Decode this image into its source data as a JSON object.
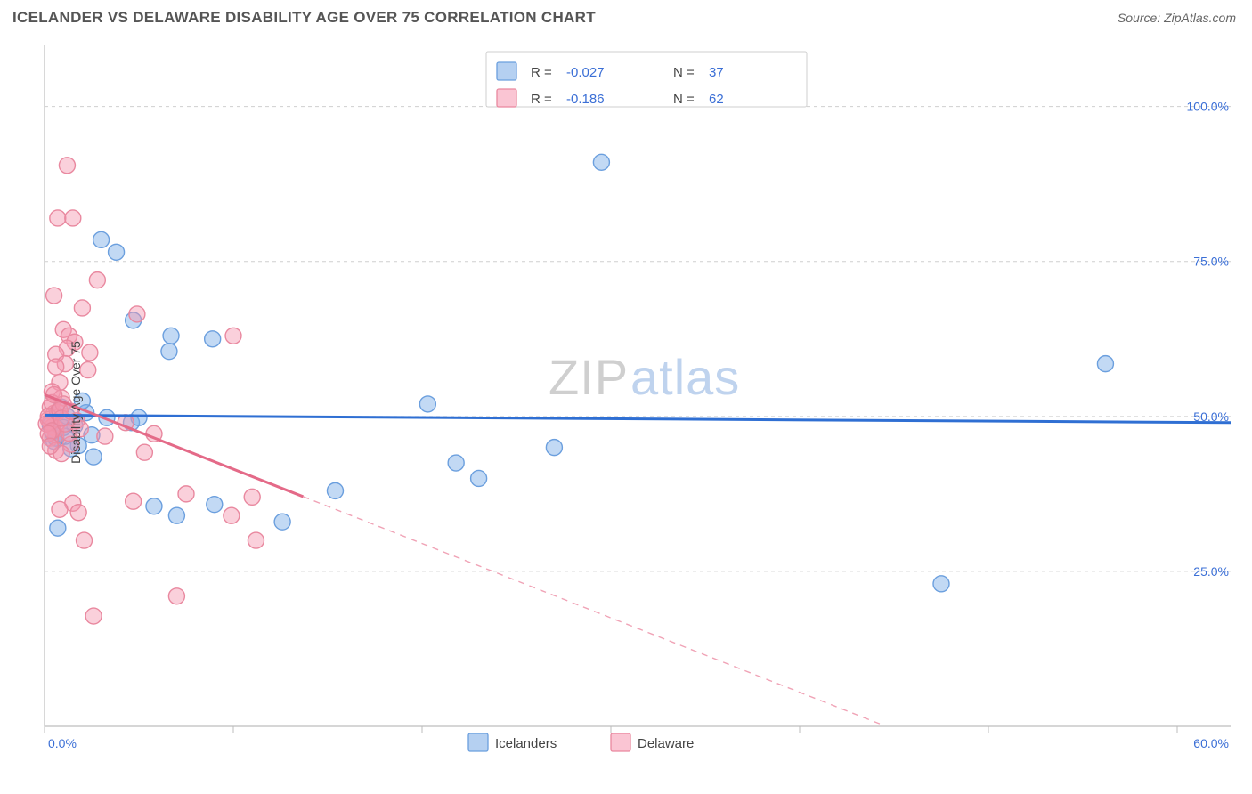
{
  "header": {
    "title": "ICELANDER VS DELAWARE DISABILITY AGE OVER 75 CORRELATION CHART",
    "source": "Source: ZipAtlas.com"
  },
  "chart": {
    "type": "scatter",
    "y_axis_title": "Disability Age Over 75",
    "background_color": "#ffffff",
    "grid_color": "#cfcfcf",
    "axis_color": "#bdbdbd",
    "axis_label_color": "#3b6fd6",
    "x": {
      "min": 0,
      "max": 60,
      "tick_step": 10,
      "min_label": "0.0%",
      "max_label": "60.0%"
    },
    "y": {
      "min": 0,
      "max": 110,
      "tick_step_grid": 25,
      "grid_labels": [
        "25.0%",
        "50.0%",
        "75.0%",
        "100.0%"
      ],
      "grid_positions": [
        25,
        50,
        75,
        100
      ]
    },
    "marker_radius": 9,
    "series": [
      {
        "name": "Icelanders",
        "color_fill": "rgba(120,170,230,0.45)",
        "color_stroke": "#6b9fde",
        "trend": {
          "color": "#2f6fd3",
          "width": 3,
          "y_at_x0": 50.2,
          "y_at_x60": 49.0
        },
        "points": [
          [
            0.5,
            46
          ],
          [
            0.7,
            32
          ],
          [
            2.5,
            47
          ],
          [
            1.2,
            50
          ],
          [
            1.6,
            48.5
          ],
          [
            3.0,
            78.5
          ],
          [
            3.8,
            76.5
          ],
          [
            4.6,
            49
          ],
          [
            4.7,
            65.5
          ],
          [
            5.8,
            35.5
          ],
          [
            6.6,
            60.5
          ],
          [
            6.7,
            63
          ],
          [
            7.0,
            34
          ],
          [
            8.9,
            62.5
          ],
          [
            9.0,
            35.8
          ],
          [
            12.6,
            33
          ],
          [
            15.4,
            38
          ],
          [
            20.3,
            52
          ],
          [
            21.8,
            42.5
          ],
          [
            23.0,
            40
          ],
          [
            27.0,
            45
          ],
          [
            29.5,
            91
          ],
          [
            47.5,
            23
          ],
          [
            56.2,
            58.5
          ],
          [
            1.8,
            45.3
          ],
          [
            1.0,
            48.2
          ],
          [
            2.2,
            50.6
          ],
          [
            0.9,
            51.5
          ],
          [
            1.4,
            44.8
          ],
          [
            2.6,
            43.5
          ],
          [
            3.3,
            49.8
          ],
          [
            0.6,
            46.5
          ],
          [
            0.4,
            47.5
          ],
          [
            5.0,
            49.8
          ],
          [
            1.1,
            46.8
          ],
          [
            0.3,
            48.6
          ],
          [
            2.0,
            52.5
          ]
        ]
      },
      {
        "name": "Delaware",
        "color_fill": "rgba(245,150,175,0.45)",
        "color_stroke": "#e9889f",
        "trend": {
          "color": "#e46a88",
          "width": 3,
          "y_at_x0": 53.5,
          "slope_y_per_x": -1.2,
          "solid_x_end": 13.7,
          "dash_x_end": 44.5
        },
        "points": [
          [
            1.2,
            90.5
          ],
          [
            0.6,
            48
          ],
          [
            0.7,
            82
          ],
          [
            1.5,
            82
          ],
          [
            2.8,
            72
          ],
          [
            0.5,
            69.5
          ],
          [
            1.0,
            64
          ],
          [
            1.3,
            63
          ],
          [
            1.6,
            62
          ],
          [
            2.0,
            67.5
          ],
          [
            1.2,
            61
          ],
          [
            0.6,
            60
          ],
          [
            1.1,
            58.5
          ],
          [
            0.8,
            55.5
          ],
          [
            0.4,
            54
          ],
          [
            0.9,
            53
          ],
          [
            0.3,
            51.5
          ],
          [
            0.5,
            50.5
          ],
          [
            0.2,
            49.5
          ],
          [
            0.4,
            48.3
          ],
          [
            0.6,
            47
          ],
          [
            0.3,
            46.5
          ],
          [
            4.3,
            49
          ],
          [
            3.2,
            46.8
          ],
          [
            1.5,
            36
          ],
          [
            0.8,
            35
          ],
          [
            1.4,
            45.5
          ],
          [
            0.6,
            44.5
          ],
          [
            0.9,
            44
          ],
          [
            0.4,
            52.2
          ],
          [
            4.7,
            36.3
          ],
          [
            4.9,
            66.5
          ],
          [
            5.3,
            44.2
          ],
          [
            5.8,
            47.2
          ],
          [
            7.0,
            21
          ],
          [
            7.5,
            37.5
          ],
          [
            9.9,
            34
          ],
          [
            10.0,
            63
          ],
          [
            11.0,
            37
          ],
          [
            11.2,
            30
          ],
          [
            0.3,
            49
          ],
          [
            0.7,
            50.7
          ],
          [
            1.0,
            52
          ],
          [
            0.5,
            53.5
          ],
          [
            1.7,
            49.3
          ],
          [
            0.2,
            50
          ],
          [
            0.1,
            48.8
          ],
          [
            0.8,
            51
          ],
          [
            0.4,
            47.7
          ],
          [
            1.3,
            47.3
          ],
          [
            1.1,
            48.8
          ],
          [
            0.9,
            49.7
          ],
          [
            2.6,
            17.8
          ],
          [
            2.1,
            30
          ],
          [
            1.8,
            34.5
          ],
          [
            2.3,
            57.5
          ],
          [
            2.4,
            60.3
          ],
          [
            0.6,
            58
          ],
          [
            0.2,
            47.2
          ],
          [
            0.3,
            45.2
          ],
          [
            1.4,
            50.8
          ],
          [
            1.9,
            48
          ]
        ]
      }
    ],
    "legend_top": {
      "rows": [
        {
          "chip": "blue",
          "r_label": "R =",
          "r_value": "-0.027",
          "n_label": "N =",
          "n_value": "37"
        },
        {
          "chip": "pink",
          "r_label": "R =",
          "r_value": "-0.186",
          "n_label": "N =",
          "n_value": "62"
        }
      ]
    },
    "legend_bottom": {
      "items": [
        {
          "chip": "blue",
          "label": "Icelanders"
        },
        {
          "chip": "pink",
          "label": "Delaware"
        }
      ]
    },
    "watermark": {
      "part1": "ZIP",
      "part2": "atlas",
      "color1": "#cfcfcf",
      "color2": "#bfd3ee",
      "fontsize": 56
    }
  }
}
